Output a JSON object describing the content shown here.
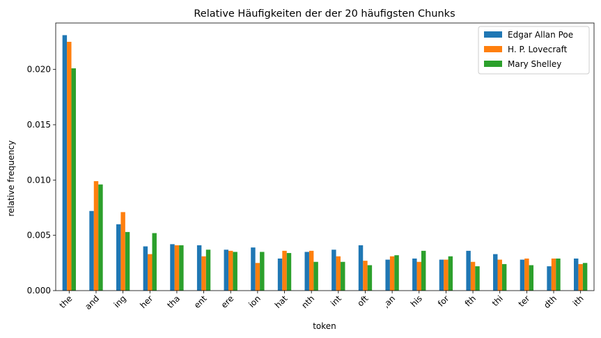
{
  "chart_data": {
    "type": "bar",
    "title": "Relative Häufigkeiten der der 20 häufigsten Chunks",
    "xlabel": "token",
    "ylabel": "relative frequency",
    "categories": [
      "the",
      "and",
      "ing",
      "her",
      "tha",
      "ent",
      "ere",
      "ion",
      "hat",
      "nth",
      "int",
      "oft",
      ",an",
      "his",
      "for",
      "fth",
      "thi",
      "ter",
      "dth",
      "ith"
    ],
    "series": [
      {
        "name": "Edgar Allan Poe",
        "color": "#1f77b4",
        "values": [
          0.0231,
          0.0072,
          0.006,
          0.004,
          0.0042,
          0.0041,
          0.0037,
          0.0039,
          0.0029,
          0.0035,
          0.0037,
          0.0041,
          0.0028,
          0.0029,
          0.0028,
          0.0036,
          0.0033,
          0.0028,
          0.0022,
          0.0029
        ]
      },
      {
        "name": "H. P. Lovecraft",
        "color": "#ff7f0e",
        "values": [
          0.0225,
          0.0099,
          0.0071,
          0.0033,
          0.0041,
          0.0031,
          0.0036,
          0.0025,
          0.0036,
          0.0036,
          0.0031,
          0.0027,
          0.0031,
          0.0026,
          0.0028,
          0.0026,
          0.0028,
          0.0029,
          0.0029,
          0.0024
        ]
      },
      {
        "name": "Mary Shelley",
        "color": "#2ca02c",
        "values": [
          0.0201,
          0.0096,
          0.0053,
          0.0052,
          0.0041,
          0.0037,
          0.0035,
          0.0035,
          0.0034,
          0.0026,
          0.0026,
          0.0023,
          0.0032,
          0.0036,
          0.0031,
          0.0022,
          0.0024,
          0.0023,
          0.0029,
          0.0025
        ]
      }
    ],
    "ylim": [
      0,
      0.0242
    ],
    "yticks": [
      "0.000",
      "0.005",
      "0.010",
      "0.015",
      "0.020"
    ],
    "ytick_values": [
      0,
      0.005,
      0.01,
      0.015,
      0.02
    ],
    "grid": false,
    "legend_position": "top-right"
  }
}
